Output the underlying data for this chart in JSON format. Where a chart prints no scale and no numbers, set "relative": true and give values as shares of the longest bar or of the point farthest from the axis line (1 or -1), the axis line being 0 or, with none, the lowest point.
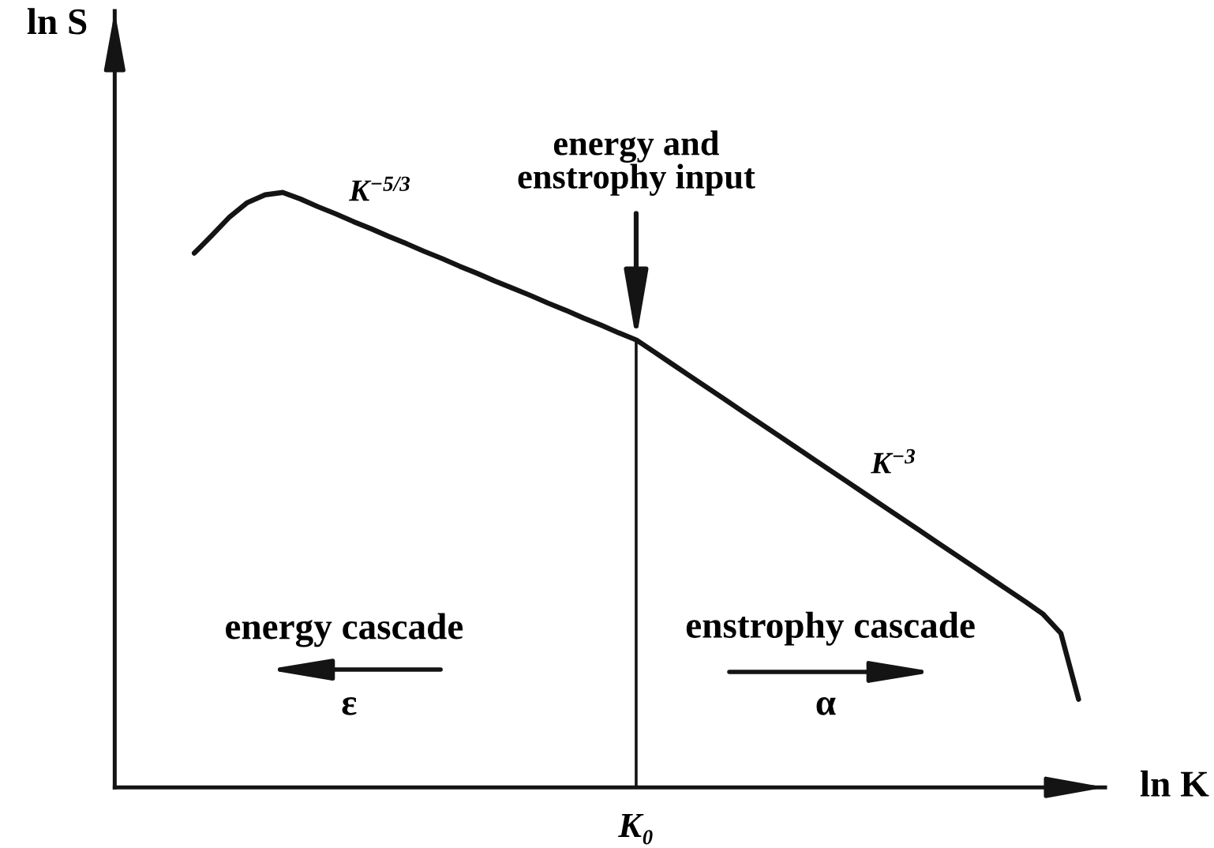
{
  "chart_data": {
    "type": "line",
    "xlabel": "ln K",
    "ylabel": "ln S",
    "relative": true,
    "line_style": "solid",
    "categories": [
      null,
      null,
      null,
      null,
      null,
      null,
      null,
      null,
      null,
      null,
      null,
      null,
      null,
      null,
      null,
      null,
      null,
      null,
      null,
      null,
      null,
      null,
      null,
      null,
      null,
      null,
      null,
      null,
      null,
      null,
      null,
      null,
      null,
      null,
      null,
      null,
      null,
      null,
      null,
      null,
      null,
      null,
      null,
      null,
      null,
      null,
      null,
      null,
      null,
      null,
      null,
      null,
      null,
      null,
      null,
      null
    ],
    "series": [
      {
        "color": "#141414",
        "values": [
          null,
          null,
          null,
          null,
          0.898,
          0.928,
          0.959,
          0.983,
          0.996,
          1,
          0.989,
          0.976,
          0.964,
          0.951,
          0.939,
          0.926,
          0.914,
          0.901,
          0.889,
          0.876,
          0.864,
          0.851,
          0.839,
          0.827,
          0.814,
          0.802,
          0.789,
          0.777,
          0.764,
          0.752,
          0.732,
          0.712,
          0.692,
          0.672,
          0.652,
          0.632,
          0.612,
          0.592,
          0.572,
          0.552,
          0.532,
          0.512,
          0.492,
          0.472,
          0.452,
          0.432,
          0.412,
          0.392,
          0.372,
          0.352,
          0.332,
          0.312,
          0.291,
          0.259,
          0.148,
          null
        ]
      }
    ],
    "annotations": [
      "K$^{−5/3}$",
      {
        "text": "energy and\nenstrophy input",
        "y": 0.752
      },
      "K$^{−3}$",
      "energy cascade",
      "ε",
      "enstrophy cascade",
      "α",
      "K₀"
    ]
  }
}
